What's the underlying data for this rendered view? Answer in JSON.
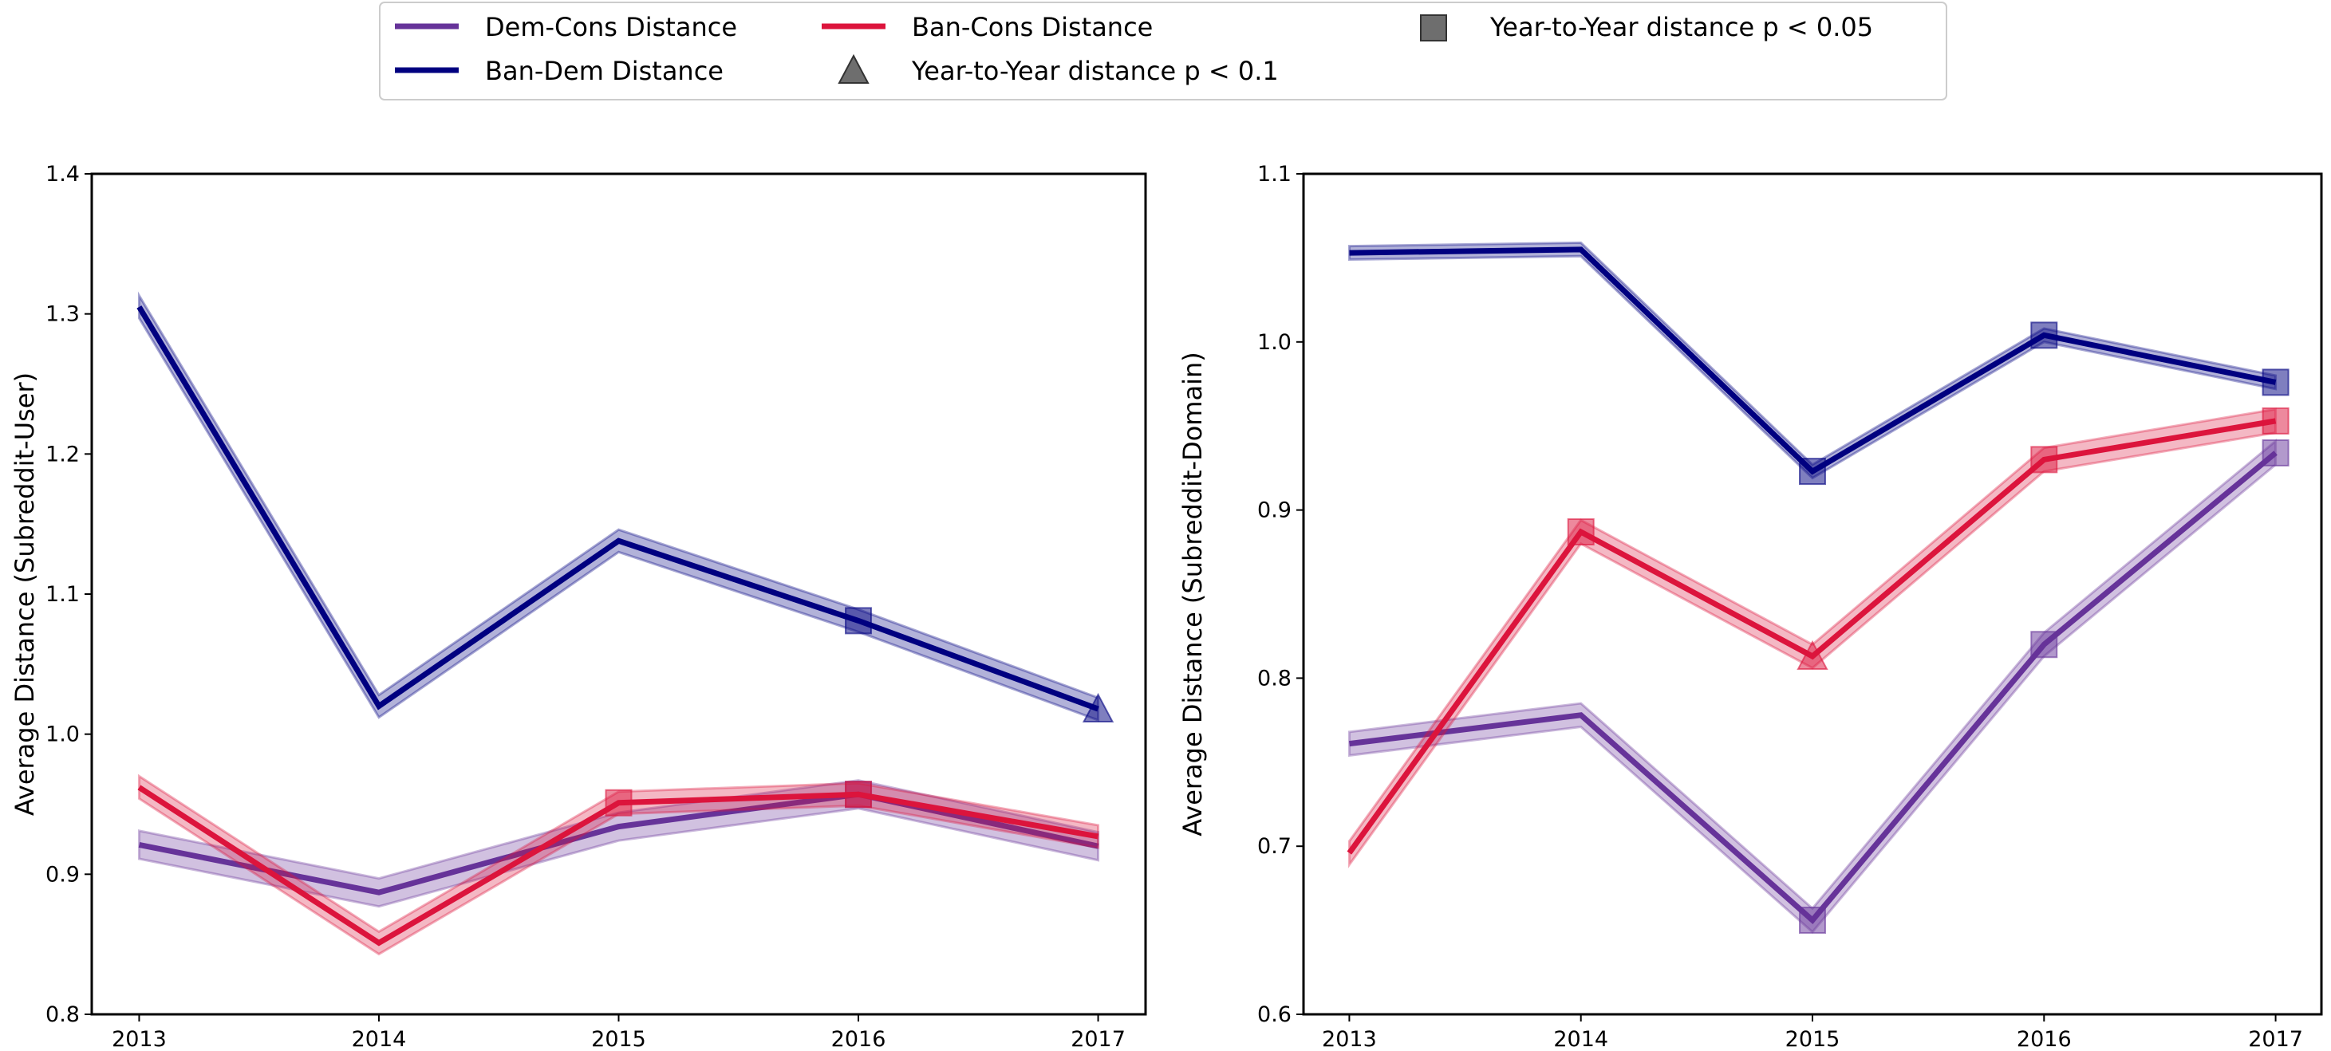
{
  "legend": {
    "entries": [
      {
        "label": "Dem-Cons Distance",
        "kind": "line",
        "color": "#663399"
      },
      {
        "label": "Ban-Dem Distance",
        "kind": "line",
        "color": "#000080"
      },
      {
        "label": "Ban-Cons Distance",
        "kind": "line",
        "color": "#dc143c"
      },
      {
        "label": "Year-to-Year distance p < 0.1",
        "kind": "triangle-marker",
        "color": "#555555"
      },
      {
        "label": "Year-to-Year distance p < 0.05",
        "kind": "square-marker",
        "color": "#555555"
      }
    ],
    "placement": "top-center"
  },
  "chart_data": [
    {
      "type": "line",
      "xlabel": "",
      "ylabel": "Average Distance (Subreddit-User)",
      "x": [
        2013,
        2014,
        2015,
        2016,
        2017
      ],
      "xticks": [
        "2013",
        "2014",
        "2015",
        "2016",
        "2017"
      ],
      "ylim": [
        0.8,
        1.4
      ],
      "yticks": [
        "0.8",
        "0.9",
        "1.0",
        "1.1",
        "1.2",
        "1.3",
        "1.4"
      ],
      "grid": false,
      "series": [
        {
          "name": "Dem-Cons Distance",
          "color": "#663399",
          "values": [
            0.921,
            0.887,
            0.934,
            0.957,
            0.92
          ],
          "band": 0.01,
          "markers": [
            null,
            null,
            null,
            "square",
            null
          ]
        },
        {
          "name": "Ban-Dem Distance",
          "color": "#000080",
          "values": [
            1.305,
            1.02,
            1.138,
            1.081,
            1.018
          ],
          "band": 0.008,
          "markers": [
            null,
            null,
            null,
            "square",
            "triangle"
          ]
        },
        {
          "name": "Ban-Cons Distance",
          "color": "#dc143c",
          "values": [
            0.962,
            0.851,
            0.951,
            0.957,
            0.927
          ],
          "band": 0.008,
          "markers": [
            null,
            null,
            "square",
            "square",
            null
          ]
        }
      ]
    },
    {
      "type": "line",
      "xlabel": "",
      "ylabel": "Average Distance (Subreddit-Domain)",
      "x": [
        2013,
        2014,
        2015,
        2016,
        2017
      ],
      "xticks": [
        "2013",
        "2014",
        "2015",
        "2016",
        "2017"
      ],
      "ylim": [
        0.6,
        1.1
      ],
      "yticks": [
        "0.6",
        "0.7",
        "0.8",
        "0.9",
        "1.0",
        "1.1"
      ],
      "grid": false,
      "series": [
        {
          "name": "Dem-Cons Distance",
          "color": "#663399",
          "values": [
            0.761,
            0.778,
            0.656,
            0.82,
            0.934
          ],
          "band": 0.007,
          "markers": [
            null,
            null,
            "square",
            "square",
            "square"
          ]
        },
        {
          "name": "Ban-Dem Distance",
          "color": "#000080",
          "values": [
            1.053,
            1.055,
            0.923,
            1.004,
            0.976
          ],
          "band": 0.004,
          "markers": [
            null,
            null,
            "square",
            "square",
            "square"
          ]
        },
        {
          "name": "Ban-Cons Distance",
          "color": "#dc143c",
          "values": [
            0.696,
            0.887,
            0.813,
            0.93,
            0.953
          ],
          "band": 0.007,
          "markers": [
            null,
            "square",
            "triangle",
            "square",
            "square"
          ]
        }
      ]
    }
  ]
}
